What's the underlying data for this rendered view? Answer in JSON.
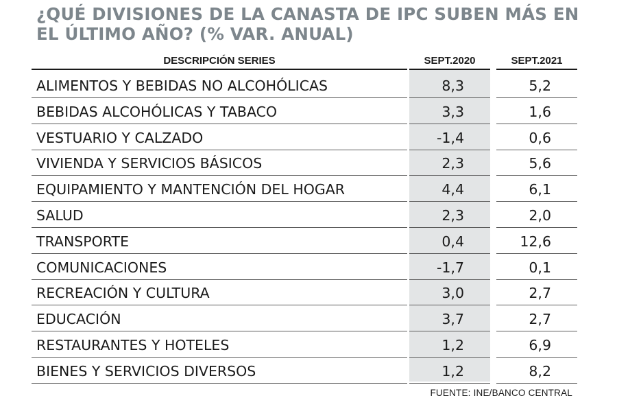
{
  "title": "¿QUÉ DIVISIONES DE LA CANASTA DE IPC SUBEN MÁS EN EL ÚLTIMO AÑO? (% VAR. ANUAL)",
  "source": "FUENTE: INE/BANCO CENTRAL",
  "colors": {
    "title": "#7d868c",
    "shade": "#e3e5e6",
    "text": "#1a1a1a"
  },
  "chart_data": {
    "type": "table",
    "title": "¿QUÉ DIVISIONES DE LA CANASTA DE IPC SUBEN MÁS EN EL ÚLTIMO AÑO? (% VAR. ANUAL)",
    "columns": [
      "DESCRIPCIÓN SERIES",
      "SEPT.2020",
      "SEPT.2021"
    ],
    "rows": [
      {
        "label": "ALIMENTOS Y BEBIDAS NO ALCOHÓLICAS",
        "v2020": "8,3",
        "v2021": "5,2"
      },
      {
        "label": "BEBIDAS ALCOHÓLICAS Y TABACO",
        "v2020": "3,3",
        "v2021": "1,6"
      },
      {
        "label": "VESTUARIO Y CALZADO",
        "v2020": "-1,4",
        "v2021": "0,6"
      },
      {
        "label": "VIVIENDA Y SERVICIOS BÁSICOS",
        "v2020": "2,3",
        "v2021": "5,6"
      },
      {
        "label": "EQUIPAMIENTO Y MANTENCIÓN DEL HOGAR",
        "v2020": "4,4",
        "v2021": "6,1"
      },
      {
        "label": "SALUD",
        "v2020": "2,3",
        "v2021": "2,0"
      },
      {
        "label": "TRANSPORTE",
        "v2020": "0,4",
        "v2021": "12,6"
      },
      {
        "label": "COMUNICACIONES",
        "v2020": "-1,7",
        "v2021": "0,1"
      },
      {
        "label": "RECREACIÓN Y CULTURA",
        "v2020": "3,0",
        "v2021": "2,7"
      },
      {
        "label": "EDUCACIÓN",
        "v2020": "3,7",
        "v2021": "2,7"
      },
      {
        "label": "RESTAURANTES Y HOTELES",
        "v2020": "1,2",
        "v2021": "6,9"
      },
      {
        "label": "BIENES Y SERVICIOS DIVERSOS",
        "v2020": "1,2",
        "v2021": "8,2"
      }
    ]
  }
}
